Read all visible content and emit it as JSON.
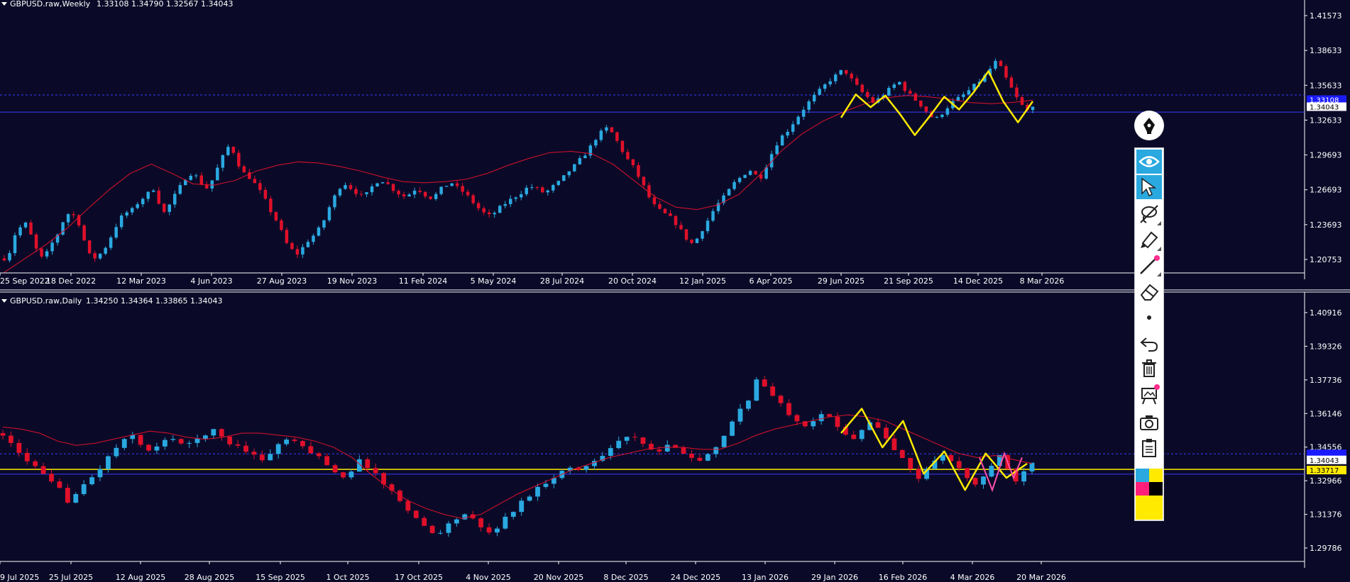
{
  "chart_data": [
    {
      "type": "candlestick",
      "title": "GBPUSD.raw,Weekly",
      "ohlc_readout": "1.33108 1.34790 1.32567 1.34043",
      "y_ticks": [
        "1.41573",
        "1.38633",
        "1.35633",
        "1.32633",
        "1.29693",
        "1.26693",
        "1.23693",
        "1.20753"
      ],
      "x_ticks": [
        "25 Sep 2022",
        "18 Dec 2022",
        "12 Mar 2023",
        "4 Jun 2023",
        "27 Aug 2023",
        "19 Nov 2023",
        "11 Feb 2024",
        "5 May 2024",
        "28 Jul 2024",
        "20 Oct 2024",
        "12 Jan 2025",
        "6 Apr 2025",
        "29 Jun 2025",
        "21 Sep 2025",
        "14 Dec 2025",
        "8 Mar 2026"
      ],
      "ylim": [
        1.1981,
        1.4212
      ],
      "last_price": "1.34043",
      "price_tag_behind": "1.33108",
      "hline_levels": [
        1.3505,
        1.3358
      ],
      "close_path": [
        1.21,
        1.215,
        1.23,
        1.236,
        1.241,
        1.232,
        1.22,
        1.21,
        1.212,
        1.221,
        1.228,
        1.236,
        1.25,
        1.246,
        1.248,
        1.232,
        1.22,
        1.208,
        1.212,
        1.215,
        1.222,
        1.231,
        1.24,
        1.247,
        1.25,
        1.252,
        1.258,
        1.262,
        1.266,
        1.27,
        1.259,
        1.249,
        1.255,
        1.263,
        1.27,
        1.278,
        1.283,
        1.282,
        1.277,
        1.269,
        1.273,
        1.283,
        1.293,
        1.302,
        1.309,
        1.296,
        1.287,
        1.281,
        1.279,
        1.272,
        1.266,
        1.258,
        1.249,
        1.242,
        1.232,
        1.222,
        1.217,
        1.214,
        1.219,
        1.225,
        1.229,
        1.234,
        1.241,
        1.252,
        1.261,
        1.27,
        1.275,
        1.272,
        1.268,
        1.265,
        1.262,
        1.269,
        1.274,
        1.278,
        1.276,
        1.272,
        1.268,
        1.265,
        1.263,
        1.266,
        1.27,
        1.268,
        1.264,
        1.262,
        1.265,
        1.27,
        1.273,
        1.275,
        1.271,
        1.268,
        1.264,
        1.259,
        1.254,
        1.25,
        1.246,
        1.248,
        1.252,
        1.256,
        1.259,
        1.262,
        1.265,
        1.268,
        1.272,
        1.271,
        1.269,
        1.266,
        1.269,
        1.273,
        1.276,
        1.281,
        1.286,
        1.29,
        1.295,
        1.3,
        1.306,
        1.313,
        1.318,
        1.322,
        1.319,
        1.312,
        1.304,
        1.296,
        1.291,
        1.283,
        1.275,
        1.266,
        1.257,
        1.253,
        1.249,
        1.247,
        1.243,
        1.238,
        1.231,
        1.225,
        1.222,
        1.229,
        1.237,
        1.244,
        1.252,
        1.258,
        1.263,
        1.269,
        1.275,
        1.279,
        1.283,
        1.286,
        1.282,
        1.279,
        1.288,
        1.298,
        1.307,
        1.314,
        1.318,
        1.324,
        1.33,
        1.336,
        1.342,
        1.347,
        1.352,
        1.356,
        1.361,
        1.365,
        1.368,
        1.372,
        1.369,
        1.362,
        1.357,
        1.352,
        1.348,
        1.344,
        1.347,
        1.351,
        1.355,
        1.359,
        1.362,
        1.356,
        1.351,
        1.347,
        1.343,
        1.338,
        1.333,
        1.329,
        1.333,
        1.338,
        1.343,
        1.346,
        1.349,
        1.352,
        1.356,
        1.36,
        1.364,
        1.368,
        1.375,
        1.38,
        1.372,
        1.363,
        1.355,
        1.347,
        1.341,
        1.337,
        1.34043
      ],
      "ma_path": [
        1.198,
        1.21,
        1.222,
        1.236,
        1.253,
        1.269,
        1.283,
        1.291,
        1.283,
        1.274,
        1.273,
        1.277,
        1.285,
        1.29,
        1.293,
        1.292,
        1.289,
        1.285,
        1.28,
        1.276,
        1.275,
        1.276,
        1.278,
        1.283,
        1.29,
        1.296,
        1.301,
        1.302,
        1.3,
        1.291,
        1.277,
        1.263,
        1.254,
        1.252,
        1.256,
        1.265,
        1.282,
        1.302,
        1.317,
        1.328,
        1.336,
        1.343,
        1.348,
        1.35,
        1.349,
        1.347,
        1.344,
        1.343,
        1.344,
        1.346
      ],
      "zigzag_path": [
        1.331,
        1.351,
        1.34,
        1.35,
        1.334,
        1.316,
        1.332,
        1.349,
        1.338,
        1.353,
        1.371,
        1.345,
        1.327,
        1.345
      ]
    },
    {
      "type": "candlestick",
      "title": "GBPUSD.raw,Daily",
      "ohlc_readout": "1.34250 1.34364 1.33865 1.34043",
      "y_ticks": [
        "1.40916",
        "1.39326",
        "1.37736",
        "1.36146",
        "1.34556",
        "1.32966",
        "1.31376",
        "1.29786"
      ],
      "x_ticks": [
        "9 Jul 2025",
        "25 Jul 2025",
        "12 Aug 2025",
        "28 Aug 2025",
        "15 Sep 2025",
        "1 Oct 2025",
        "17 Oct 2025",
        "4 Nov 2025",
        "20 Nov 2025",
        "8 Dec 2025",
        "24 Dec 2025",
        "13 Jan 2026",
        "29 Jan 2026",
        "16 Feb 2026",
        "4 Mar 2026",
        "20 Mar 2026"
      ],
      "ylim": [
        1.2922,
        1.4157
      ],
      "last_price": "1.34043",
      "yellow_level": 1.33717,
      "yellow_label": "1.33717",
      "blue_levels": [
        1.3448,
        1.3348
      ],
      "close_path": [
        1.355,
        1.349,
        1.345,
        1.342,
        1.338,
        1.334,
        1.33,
        1.327,
        1.322,
        1.325,
        1.329,
        1.333,
        1.338,
        1.343,
        1.348,
        1.351,
        1.354,
        1.35,
        1.346,
        1.348,
        1.351,
        1.353,
        1.35,
        1.349,
        1.352,
        1.355,
        1.356,
        1.353,
        1.35,
        1.349,
        1.347,
        1.344,
        1.342,
        1.345,
        1.349,
        1.352,
        1.35,
        1.348,
        1.346,
        1.343,
        1.34,
        1.336,
        1.334,
        1.337,
        1.341,
        1.339,
        1.335,
        1.33,
        1.326,
        1.322,
        1.318,
        1.313,
        1.309,
        1.306,
        1.307,
        1.31,
        1.313,
        1.315,
        1.312,
        1.308,
        1.306,
        1.309,
        1.313,
        1.317,
        1.321,
        1.325,
        1.328,
        1.331,
        1.334,
        1.336,
        1.338,
        1.337,
        1.339,
        1.342,
        1.345,
        1.348,
        1.351,
        1.353,
        1.352,
        1.349,
        1.347,
        1.346,
        1.348,
        1.349,
        1.346,
        1.343,
        1.341,
        1.344,
        1.347,
        1.353,
        1.361,
        1.367,
        1.372,
        1.381,
        1.378,
        1.373,
        1.369,
        1.365,
        1.362,
        1.359,
        1.362,
        1.365,
        1.362,
        1.358,
        1.355,
        1.353,
        1.357,
        1.361,
        1.357,
        1.352,
        1.347,
        1.342,
        1.337,
        1.333,
        1.337,
        1.342,
        1.345,
        1.341,
        1.337,
        1.333,
        1.329,
        1.334,
        1.339,
        1.343,
        1.337,
        1.332,
        1.336,
        1.34043
      ],
      "ma_path": [
        1.358,
        1.357,
        1.355,
        1.351,
        1.349,
        1.35,
        1.352,
        1.354,
        1.356,
        1.355,
        1.353,
        1.352,
        1.353,
        1.355,
        1.355,
        1.354,
        1.353,
        1.351,
        1.348,
        1.343,
        1.335,
        1.328,
        1.322,
        1.318,
        1.315,
        1.313,
        1.315,
        1.32,
        1.325,
        1.329,
        1.333,
        1.337,
        1.34,
        1.343,
        1.345,
        1.347,
        1.348,
        1.348,
        1.347,
        1.347,
        1.35,
        1.354,
        1.357,
        1.359,
        1.361,
        1.363,
        1.364,
        1.363,
        1.361,
        1.357,
        1.353,
        1.349,
        1.345,
        1.343,
        1.344,
        1.342,
        1.34
      ],
      "zigzag_path": [
        1.355,
        1.367,
        1.348,
        1.361,
        1.335,
        1.346,
        1.327,
        1.345,
        1.333,
        1.34
      ]
    }
  ],
  "toolbar": {
    "tools": [
      "pen-tool",
      "eye-tool",
      "pointer-tool",
      "lasso-tool",
      "highlighter-tool",
      "line-tool",
      "eraser-tool",
      "dot-tool",
      "undo-tool",
      "delete-tool",
      "screenshot-tool",
      "camera-tool",
      "clipboard-tool"
    ],
    "colors": {
      "cyan": "#2aa9e0",
      "yellow": "#ffea00",
      "magenta": "#ff1f7a",
      "black": "#000000",
      "active": "#2aa9e0"
    }
  },
  "theme": {
    "background": "#0a0a28",
    "bull_candle": "#2aa9e0",
    "bear_candle": "#e0102a",
    "ma_line": "#e0102a",
    "zigzag": "#ffea00",
    "zigzag_alt": "#ff4fa8",
    "hline": "#3a3aff",
    "axis_text": "#ffffff"
  }
}
